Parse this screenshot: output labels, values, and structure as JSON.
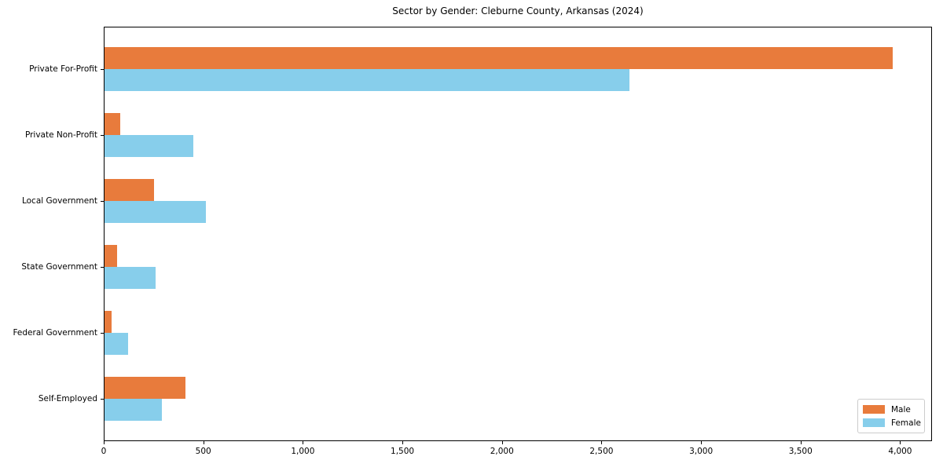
{
  "chart_data": {
    "type": "bar",
    "orientation": "horizontal",
    "title": "Sector by Gender: Cleburne County, Arkansas (2024)",
    "categories": [
      "Private For-Profit",
      "Private Non-Profit",
      "Local Government",
      "State Government",
      "Federal Government",
      "Self-Employed"
    ],
    "series": [
      {
        "name": "Male",
        "color": "#e87b3c",
        "values": [
          3960,
          80,
          250,
          65,
          35,
          405
        ]
      },
      {
        "name": "Female",
        "color": "#87ceeb",
        "values": [
          2635,
          445,
          510,
          255,
          120,
          290
        ]
      }
    ],
    "xlabel": "",
    "ylabel": "",
    "xlim": [
      0,
      4160
    ],
    "x_ticks": [
      0,
      500,
      1000,
      1500,
      2000,
      2500,
      3000,
      3500,
      4000
    ],
    "x_tick_labels": [
      "0",
      "500",
      "1,000",
      "1,500",
      "2,000",
      "2,500",
      "3,000",
      "3,500",
      "4,000"
    ],
    "grid": false,
    "legend": {
      "position": "lower right",
      "entries": [
        "Male",
        "Female"
      ]
    }
  },
  "colors": {
    "background": "#ffffff",
    "axis": "#000000",
    "text": "#000000",
    "legend_border": "#cccccc",
    "male": "#e87b3c",
    "female": "#87ceeb"
  }
}
